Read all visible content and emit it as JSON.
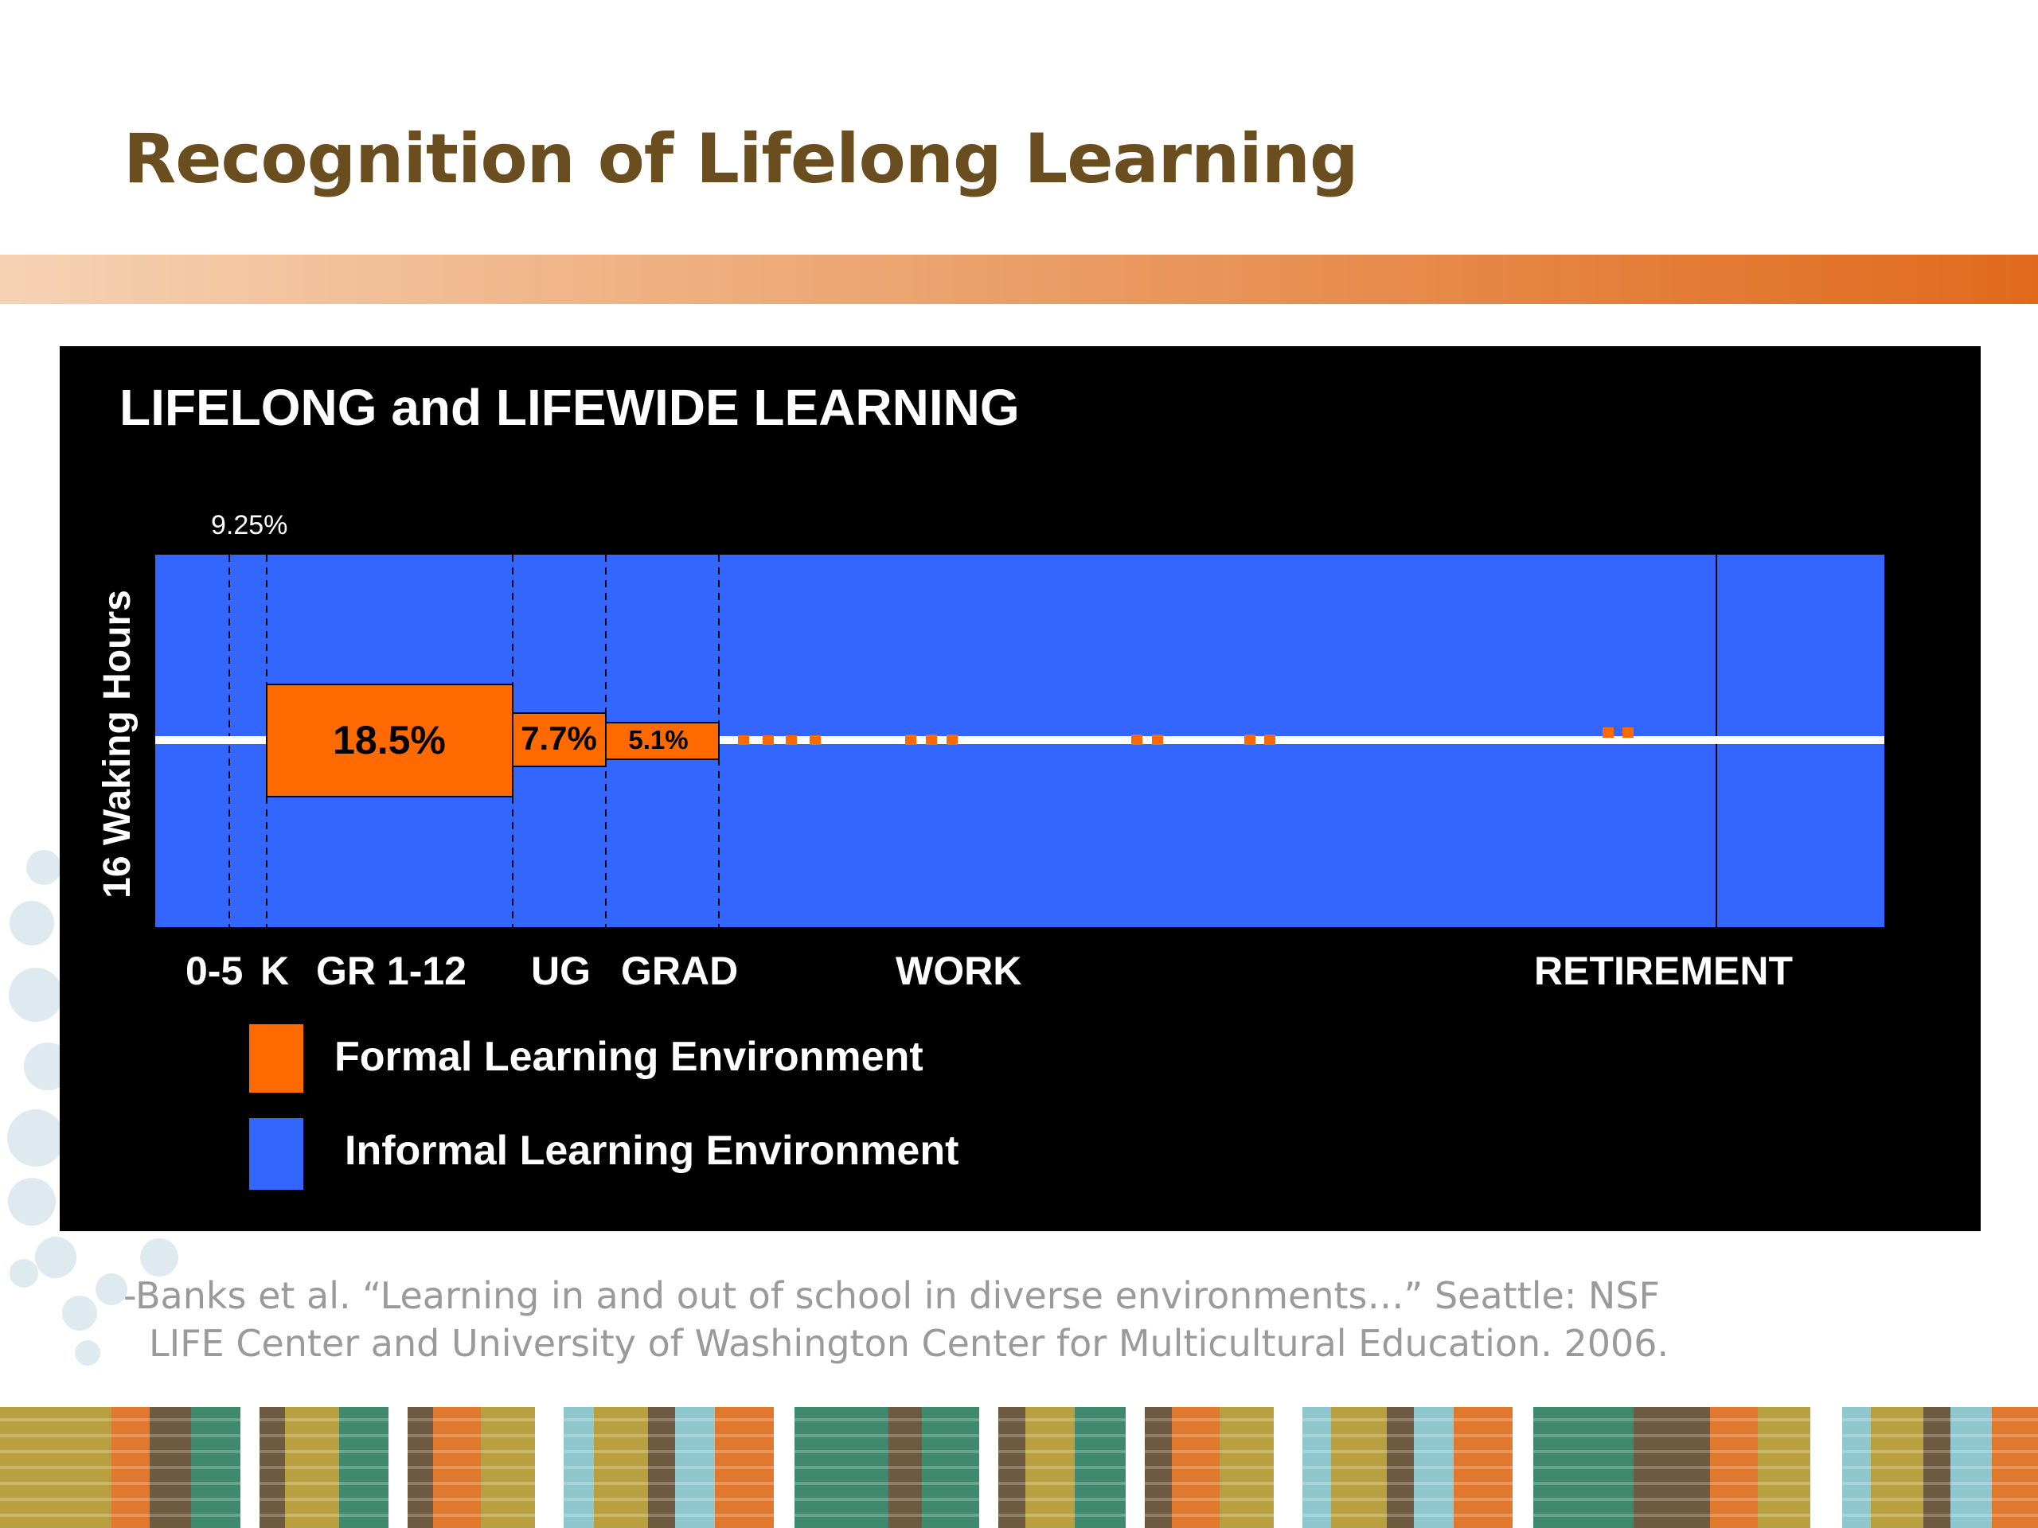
{
  "slide": {
    "title": "Recognition of Lifelong Learning",
    "title_color": "#6b4e1f",
    "accent_bar_colors": [
      "#f6d2b3",
      "#e06a1c"
    ],
    "citation_line1": "-Banks et al.  “Learning in and out of school in diverse environments…” Seattle: NSF",
    "citation_line2": "LIFE Center and University of Washington Center for Multicultural Education. 2006.",
    "citation_color": "#9a9a9a"
  },
  "diagram": {
    "title": "LIFELONG and LIFEWIDE LEARNING",
    "y_axis_label": "16 Waking Hours",
    "top_annotation": "9.25%",
    "stages": [
      "0-5",
      "K",
      "GR 1-12",
      "UG",
      "GRAD",
      "WORK",
      "RETIREMENT"
    ],
    "formal_blocks": [
      {
        "label": "18.5%",
        "stage": "GR 1-12"
      },
      {
        "label": "7.7%",
        "stage": "UG"
      },
      {
        "label": "5.1%",
        "stage": "GRAD"
      }
    ],
    "legend": [
      {
        "label": "Formal Learning Environment",
        "color": "#ff6a00"
      },
      {
        "label": "Informal Learning Environment",
        "color": "#3366ff"
      }
    ],
    "colors": {
      "formal": "#ff6a00",
      "informal": "#3366ff",
      "background": "#000000",
      "midline": "#ffffff"
    }
  }
}
